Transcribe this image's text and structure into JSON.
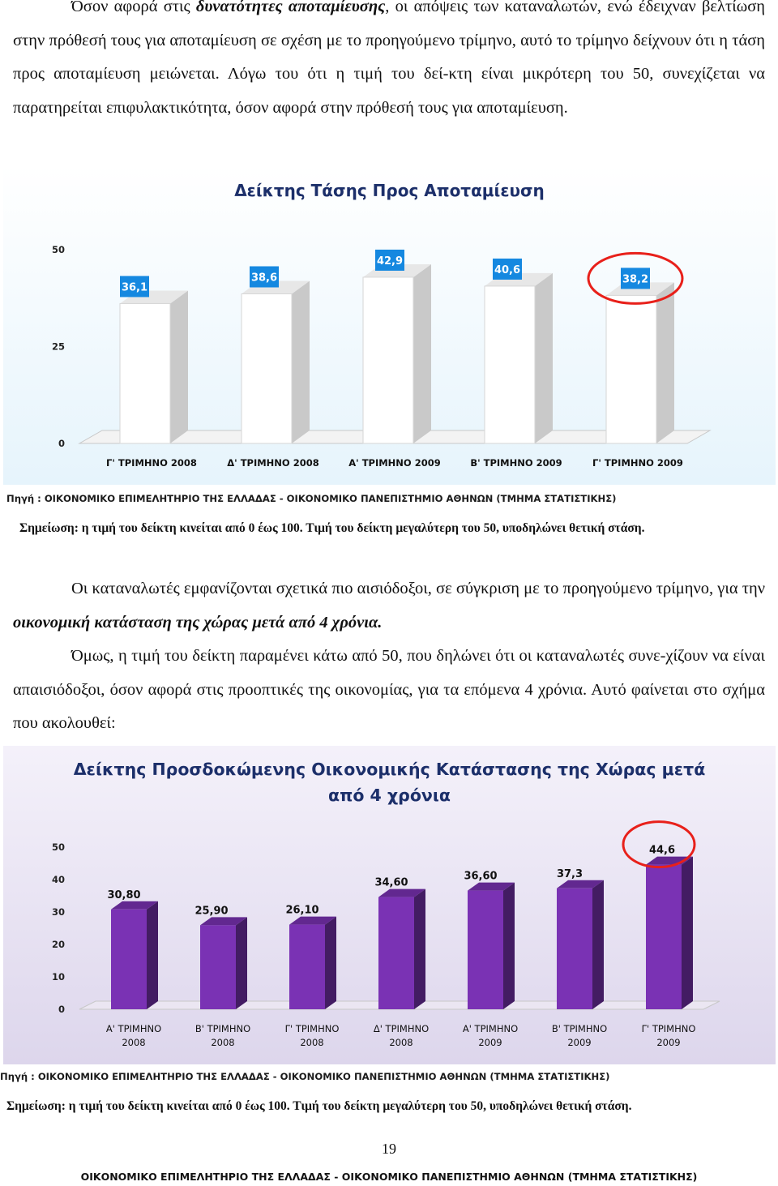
{
  "paragraph1": {
    "part1": "Όσον αφορά στις ",
    "bold": "δυνατότητες αποταμίευσης",
    "part2": ", οι απόψεις των καταναλωτών, ενώ έδειχναν βελτίωση στην πρόθεσή τους για αποταμίευση σε σχέση με το προηγούμενο τρίμηνο, αυτό το τρίμηνο δείχνουν ότι η τάση προς αποταμίευση μειώνεται. Λόγω του ότι η τιμή του δεί-κτη είναι μικρότερη του 50, συνεχίζεται να παρατηρείται επιφυλακτικότητα, όσον αφορά στην πρόθεσή τους για αποταμίευση."
  },
  "chart_data": [
    {
      "type": "bar",
      "title": "Δείκτης Τάσης Προς Αποταμίευση",
      "categories": [
        "Γ' ΤΡΙΜΗΝΟ 2008",
        "Δ' ΤΡΙΜΗΝΟ 2008",
        "Α' ΤΡΙΜΗΝΟ 2009",
        "Β' ΤΡΙΜΗΝΟ 2009",
        "Γ' ΤΡΙΜΗΝΟ 2009"
      ],
      "values": [
        36.1,
        38.6,
        42.9,
        40.6,
        38.2
      ],
      "value_labels": [
        "36,1",
        "38,6",
        "42,9",
        "40,6",
        "38,2"
      ],
      "yticks": [
        "0",
        "25",
        "50"
      ],
      "ylim": [
        0,
        50
      ],
      "xlabel": "",
      "ylabel": "",
      "grid": false,
      "bar_color": "#ffffff",
      "label_box_color": "#1588e0",
      "highlight_index": 4,
      "highlight_color": "#e8201a",
      "background": [
        "#ffffff",
        "#e6f4fc"
      ]
    },
    {
      "type": "bar",
      "title": "Δείκτης Προσδοκώμενης Οικονομικής Κατάστασης της Χώρας μετά από 4 χρόνια",
      "categories": [
        "Α' ΤΡΙΜΗΝΟ 2008",
        "Β' ΤΡΙΜΗΝΟ 2008",
        "Γ' ΤΡΙΜΗΝΟ 2008",
        "Δ' ΤΡΙΜΗΝΟ 2008",
        "Α' ΤΡΙΜΗΝΟ 2009",
        "Β' ΤΡΙΜΗΝΟ 2009",
        "Γ' ΤΡΙΜΗΝΟ 2009"
      ],
      "values": [
        30.8,
        25.9,
        26.1,
        34.6,
        36.6,
        37.3,
        44.6
      ],
      "value_labels": [
        "30,80",
        "25,90",
        "26,10",
        "34,60",
        "36,60",
        "37,3",
        "44,6"
      ],
      "yticks": [
        "0",
        "10",
        "20",
        "30",
        "40",
        "50"
      ],
      "ylim": [
        0,
        50
      ],
      "xlabel": "",
      "ylabel": "",
      "grid": false,
      "bar_color": "#7a32b4",
      "highlight_index": 6,
      "highlight_color": "#e8201a",
      "background": [
        "#f4f1fa",
        "#ddd6ec"
      ]
    }
  ],
  "chart1_source": "Πηγή : ΟΙΚΟΝΟΜΙΚΟ ΕΠΙΜΕΛΗΤΗΡΙΟ ΤΗΣ ΕΛΛΑΔΑΣ - ΟΙΚΟΝΟΜΙΚΟ ΠΑΝΕΠΙΣΤΗΜΙΟ ΑΘΗΝΩΝ (ΤΜΗΜΑ ΣΤΑΤΙΣΤΙΚΗΣ)",
  "chart1_note": "Σημείωση: η τιμή του δείκτη κινείται από 0 έως 100. Τιμή του δείκτη μεγαλύτερη του 50, υποδηλώνει θετική στάση.",
  "paragraph2": {
    "part1": "Οι καταναλωτές εμφανίζονται σχετικά πιο αισιόδοξοι, σε σύγκριση με το προηγούμενο τρίμηνο, για την ",
    "bold": "οικονομική κατάσταση της χώρας μετά από 4 χρόνια."
  },
  "paragraph3": "Όμως, η τιμή του δείκτη παραμένει κάτω από 50, που δηλώνει ότι οι καταναλωτές συνε-χίζουν να είναι απαισιόδοξοι, όσον αφορά στις προοπτικές της οικονομίας, για τα επόμενα 4 χρόνια. Αυτό φαίνεται στο σχήμα που ακολουθεί:",
  "chart2_source": "Πηγή : ΟΙΚΟΝΟΜΙΚΟ ΕΠΙΜΕΛΗΤΗΡΙΟ ΤΗΣ ΕΛΛΑΔΑΣ - ΟΙΚΟΝΟΜΙΚΟ ΠΑΝΕΠΙΣΤΗΜΙΟ ΑΘΗΝΩΝ (ΤΜΗΜΑ ΣΤΑΤΙΣΤΙΚΗΣ)",
  "chart2_note": "Σημείωση: η τιμή του δείκτη κινείται από 0 έως 100. Τιμή του δείκτη μεγαλύτερη του 50, υποδηλώνει θετική στάση.",
  "page_number": "19",
  "footer": "ΟΙΚΟΝΟΜΙΚΟ ΕΠΙΜΕΛΗΤΗΡΙΟ ΤΗΣ ΕΛΛΑΔΑΣ - ΟΙΚΟΝΟΜΙΚΟ ΠΑΝΕΠΙΣΤΗΜΙΟ ΑΘΗΝΩΝ (ΤΜΗΜΑ ΣΤΑΤΙΣΤΙΚΗΣ)"
}
